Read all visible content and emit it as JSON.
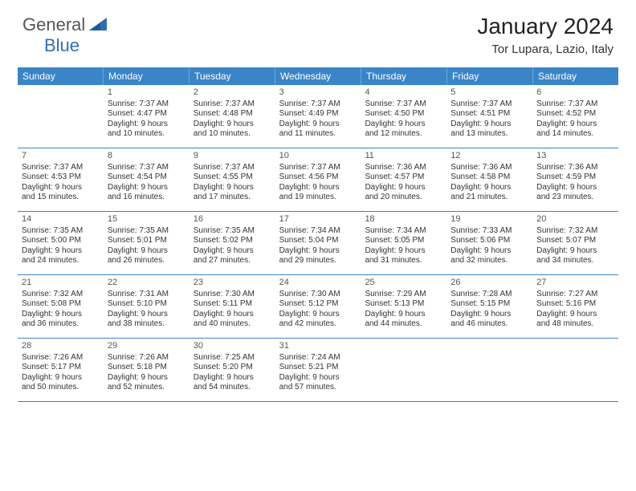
{
  "brand": {
    "part1": "General",
    "part2": "Blue"
  },
  "title": "January 2024",
  "location": "Tor Lupara, Lazio, Italy",
  "colors": {
    "header_bg": "#3a85c8",
    "header_text": "#ffffff",
    "row_border": "#3a85c8",
    "brand_gray": "#555555",
    "brand_blue": "#2f6fb0",
    "text": "#333333",
    "background": "#ffffff"
  },
  "day_headers": [
    "Sunday",
    "Monday",
    "Tuesday",
    "Wednesday",
    "Thursday",
    "Friday",
    "Saturday"
  ],
  "weeks": [
    [
      {
        "n": "",
        "sun": "",
        "set": "",
        "dl1": "",
        "dl2": ""
      },
      {
        "n": "1",
        "sun": "Sunrise: 7:37 AM",
        "set": "Sunset: 4:47 PM",
        "dl1": "Daylight: 9 hours",
        "dl2": "and 10 minutes."
      },
      {
        "n": "2",
        "sun": "Sunrise: 7:37 AM",
        "set": "Sunset: 4:48 PM",
        "dl1": "Daylight: 9 hours",
        "dl2": "and 10 minutes."
      },
      {
        "n": "3",
        "sun": "Sunrise: 7:37 AM",
        "set": "Sunset: 4:49 PM",
        "dl1": "Daylight: 9 hours",
        "dl2": "and 11 minutes."
      },
      {
        "n": "4",
        "sun": "Sunrise: 7:37 AM",
        "set": "Sunset: 4:50 PM",
        "dl1": "Daylight: 9 hours",
        "dl2": "and 12 minutes."
      },
      {
        "n": "5",
        "sun": "Sunrise: 7:37 AM",
        "set": "Sunset: 4:51 PM",
        "dl1": "Daylight: 9 hours",
        "dl2": "and 13 minutes."
      },
      {
        "n": "6",
        "sun": "Sunrise: 7:37 AM",
        "set": "Sunset: 4:52 PM",
        "dl1": "Daylight: 9 hours",
        "dl2": "and 14 minutes."
      }
    ],
    [
      {
        "n": "7",
        "sun": "Sunrise: 7:37 AM",
        "set": "Sunset: 4:53 PM",
        "dl1": "Daylight: 9 hours",
        "dl2": "and 15 minutes."
      },
      {
        "n": "8",
        "sun": "Sunrise: 7:37 AM",
        "set": "Sunset: 4:54 PM",
        "dl1": "Daylight: 9 hours",
        "dl2": "and 16 minutes."
      },
      {
        "n": "9",
        "sun": "Sunrise: 7:37 AM",
        "set": "Sunset: 4:55 PM",
        "dl1": "Daylight: 9 hours",
        "dl2": "and 17 minutes."
      },
      {
        "n": "10",
        "sun": "Sunrise: 7:37 AM",
        "set": "Sunset: 4:56 PM",
        "dl1": "Daylight: 9 hours",
        "dl2": "and 19 minutes."
      },
      {
        "n": "11",
        "sun": "Sunrise: 7:36 AM",
        "set": "Sunset: 4:57 PM",
        "dl1": "Daylight: 9 hours",
        "dl2": "and 20 minutes."
      },
      {
        "n": "12",
        "sun": "Sunrise: 7:36 AM",
        "set": "Sunset: 4:58 PM",
        "dl1": "Daylight: 9 hours",
        "dl2": "and 21 minutes."
      },
      {
        "n": "13",
        "sun": "Sunrise: 7:36 AM",
        "set": "Sunset: 4:59 PM",
        "dl1": "Daylight: 9 hours",
        "dl2": "and 23 minutes."
      }
    ],
    [
      {
        "n": "14",
        "sun": "Sunrise: 7:35 AM",
        "set": "Sunset: 5:00 PM",
        "dl1": "Daylight: 9 hours",
        "dl2": "and 24 minutes."
      },
      {
        "n": "15",
        "sun": "Sunrise: 7:35 AM",
        "set": "Sunset: 5:01 PM",
        "dl1": "Daylight: 9 hours",
        "dl2": "and 26 minutes."
      },
      {
        "n": "16",
        "sun": "Sunrise: 7:35 AM",
        "set": "Sunset: 5:02 PM",
        "dl1": "Daylight: 9 hours",
        "dl2": "and 27 minutes."
      },
      {
        "n": "17",
        "sun": "Sunrise: 7:34 AM",
        "set": "Sunset: 5:04 PM",
        "dl1": "Daylight: 9 hours",
        "dl2": "and 29 minutes."
      },
      {
        "n": "18",
        "sun": "Sunrise: 7:34 AM",
        "set": "Sunset: 5:05 PM",
        "dl1": "Daylight: 9 hours",
        "dl2": "and 31 minutes."
      },
      {
        "n": "19",
        "sun": "Sunrise: 7:33 AM",
        "set": "Sunset: 5:06 PM",
        "dl1": "Daylight: 9 hours",
        "dl2": "and 32 minutes."
      },
      {
        "n": "20",
        "sun": "Sunrise: 7:32 AM",
        "set": "Sunset: 5:07 PM",
        "dl1": "Daylight: 9 hours",
        "dl2": "and 34 minutes."
      }
    ],
    [
      {
        "n": "21",
        "sun": "Sunrise: 7:32 AM",
        "set": "Sunset: 5:08 PM",
        "dl1": "Daylight: 9 hours",
        "dl2": "and 36 minutes."
      },
      {
        "n": "22",
        "sun": "Sunrise: 7:31 AM",
        "set": "Sunset: 5:10 PM",
        "dl1": "Daylight: 9 hours",
        "dl2": "and 38 minutes."
      },
      {
        "n": "23",
        "sun": "Sunrise: 7:30 AM",
        "set": "Sunset: 5:11 PM",
        "dl1": "Daylight: 9 hours",
        "dl2": "and 40 minutes."
      },
      {
        "n": "24",
        "sun": "Sunrise: 7:30 AM",
        "set": "Sunset: 5:12 PM",
        "dl1": "Daylight: 9 hours",
        "dl2": "and 42 minutes."
      },
      {
        "n": "25",
        "sun": "Sunrise: 7:29 AM",
        "set": "Sunset: 5:13 PM",
        "dl1": "Daylight: 9 hours",
        "dl2": "and 44 minutes."
      },
      {
        "n": "26",
        "sun": "Sunrise: 7:28 AM",
        "set": "Sunset: 5:15 PM",
        "dl1": "Daylight: 9 hours",
        "dl2": "and 46 minutes."
      },
      {
        "n": "27",
        "sun": "Sunrise: 7:27 AM",
        "set": "Sunset: 5:16 PM",
        "dl1": "Daylight: 9 hours",
        "dl2": "and 48 minutes."
      }
    ],
    [
      {
        "n": "28",
        "sun": "Sunrise: 7:26 AM",
        "set": "Sunset: 5:17 PM",
        "dl1": "Daylight: 9 hours",
        "dl2": "and 50 minutes."
      },
      {
        "n": "29",
        "sun": "Sunrise: 7:26 AM",
        "set": "Sunset: 5:18 PM",
        "dl1": "Daylight: 9 hours",
        "dl2": "and 52 minutes."
      },
      {
        "n": "30",
        "sun": "Sunrise: 7:25 AM",
        "set": "Sunset: 5:20 PM",
        "dl1": "Daylight: 9 hours",
        "dl2": "and 54 minutes."
      },
      {
        "n": "31",
        "sun": "Sunrise: 7:24 AM",
        "set": "Sunset: 5:21 PM",
        "dl1": "Daylight: 9 hours",
        "dl2": "and 57 minutes."
      },
      {
        "n": "",
        "sun": "",
        "set": "",
        "dl1": "",
        "dl2": ""
      },
      {
        "n": "",
        "sun": "",
        "set": "",
        "dl1": "",
        "dl2": ""
      },
      {
        "n": "",
        "sun": "",
        "set": "",
        "dl1": "",
        "dl2": ""
      }
    ]
  ]
}
